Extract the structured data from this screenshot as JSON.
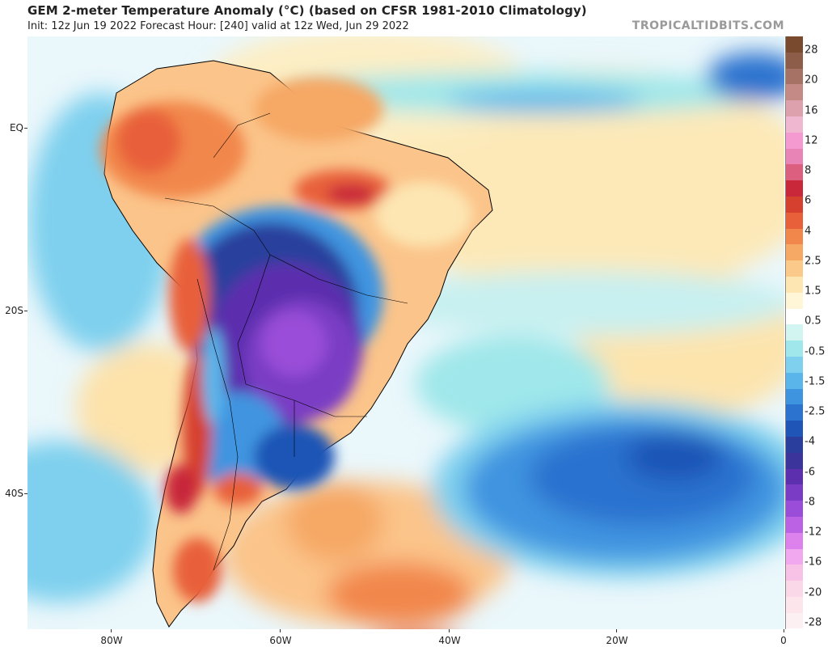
{
  "title": "GEM 2-meter Temperature Anomaly (°C) (based on CFSR 1981-2010 Climatology)",
  "subtitle": "Init: 12z Jun 19 2022   Forecast Hour: [240]   valid at 12z Wed, Jun 29 2022",
  "brand": "TROPICALTIDBITS.COM",
  "lat_labels": [
    "EQ",
    "20S",
    "40S"
  ],
  "lon_labels": [
    "80W",
    "60W",
    "40W",
    "20W",
    "0"
  ],
  "colorbar_labels": [
    "28",
    "20",
    "16",
    "12",
    "8",
    "6",
    "4",
    "2.5",
    "1.5",
    "0.5",
    "-0.5",
    "-1.5",
    "-2.5",
    "-4",
    "-6",
    "-8",
    "-12",
    "-16",
    "-20",
    "-28"
  ],
  "colorbar_colors": [
    "#7a4a2e",
    "#8e5d4a",
    "#a77266",
    "#c48a86",
    "#dda0ad",
    "#f0b8d0",
    "#f49ad1",
    "#e884b6",
    "#dd5f7f",
    "#c8283a",
    "#d6402e",
    "#e8603a",
    "#f2874b",
    "#f6a865",
    "#fbc98a",
    "#fde6b2",
    "#fff6d8",
    "#ffffff",
    "#d2f5f2",
    "#9fe7ea",
    "#7ed0ee",
    "#5ab5ea",
    "#3f94e0",
    "#2c72cf",
    "#1f55b6",
    "#2a3f9d",
    "#3b349b",
    "#5c2fae",
    "#7a3cc4",
    "#9a4dd8",
    "#bb62e4",
    "#dd82ec",
    "#f2a8ef",
    "#f7c2e6",
    "#fbd8e8",
    "#fce6ec",
    "#fdf0f3"
  ],
  "legend": {
    "warm_extreme": "#c8283a",
    "cold_extreme": "#8a3fd0",
    "ocean_cool": "#3f94e0",
    "neutral": "#fff6d8"
  }
}
